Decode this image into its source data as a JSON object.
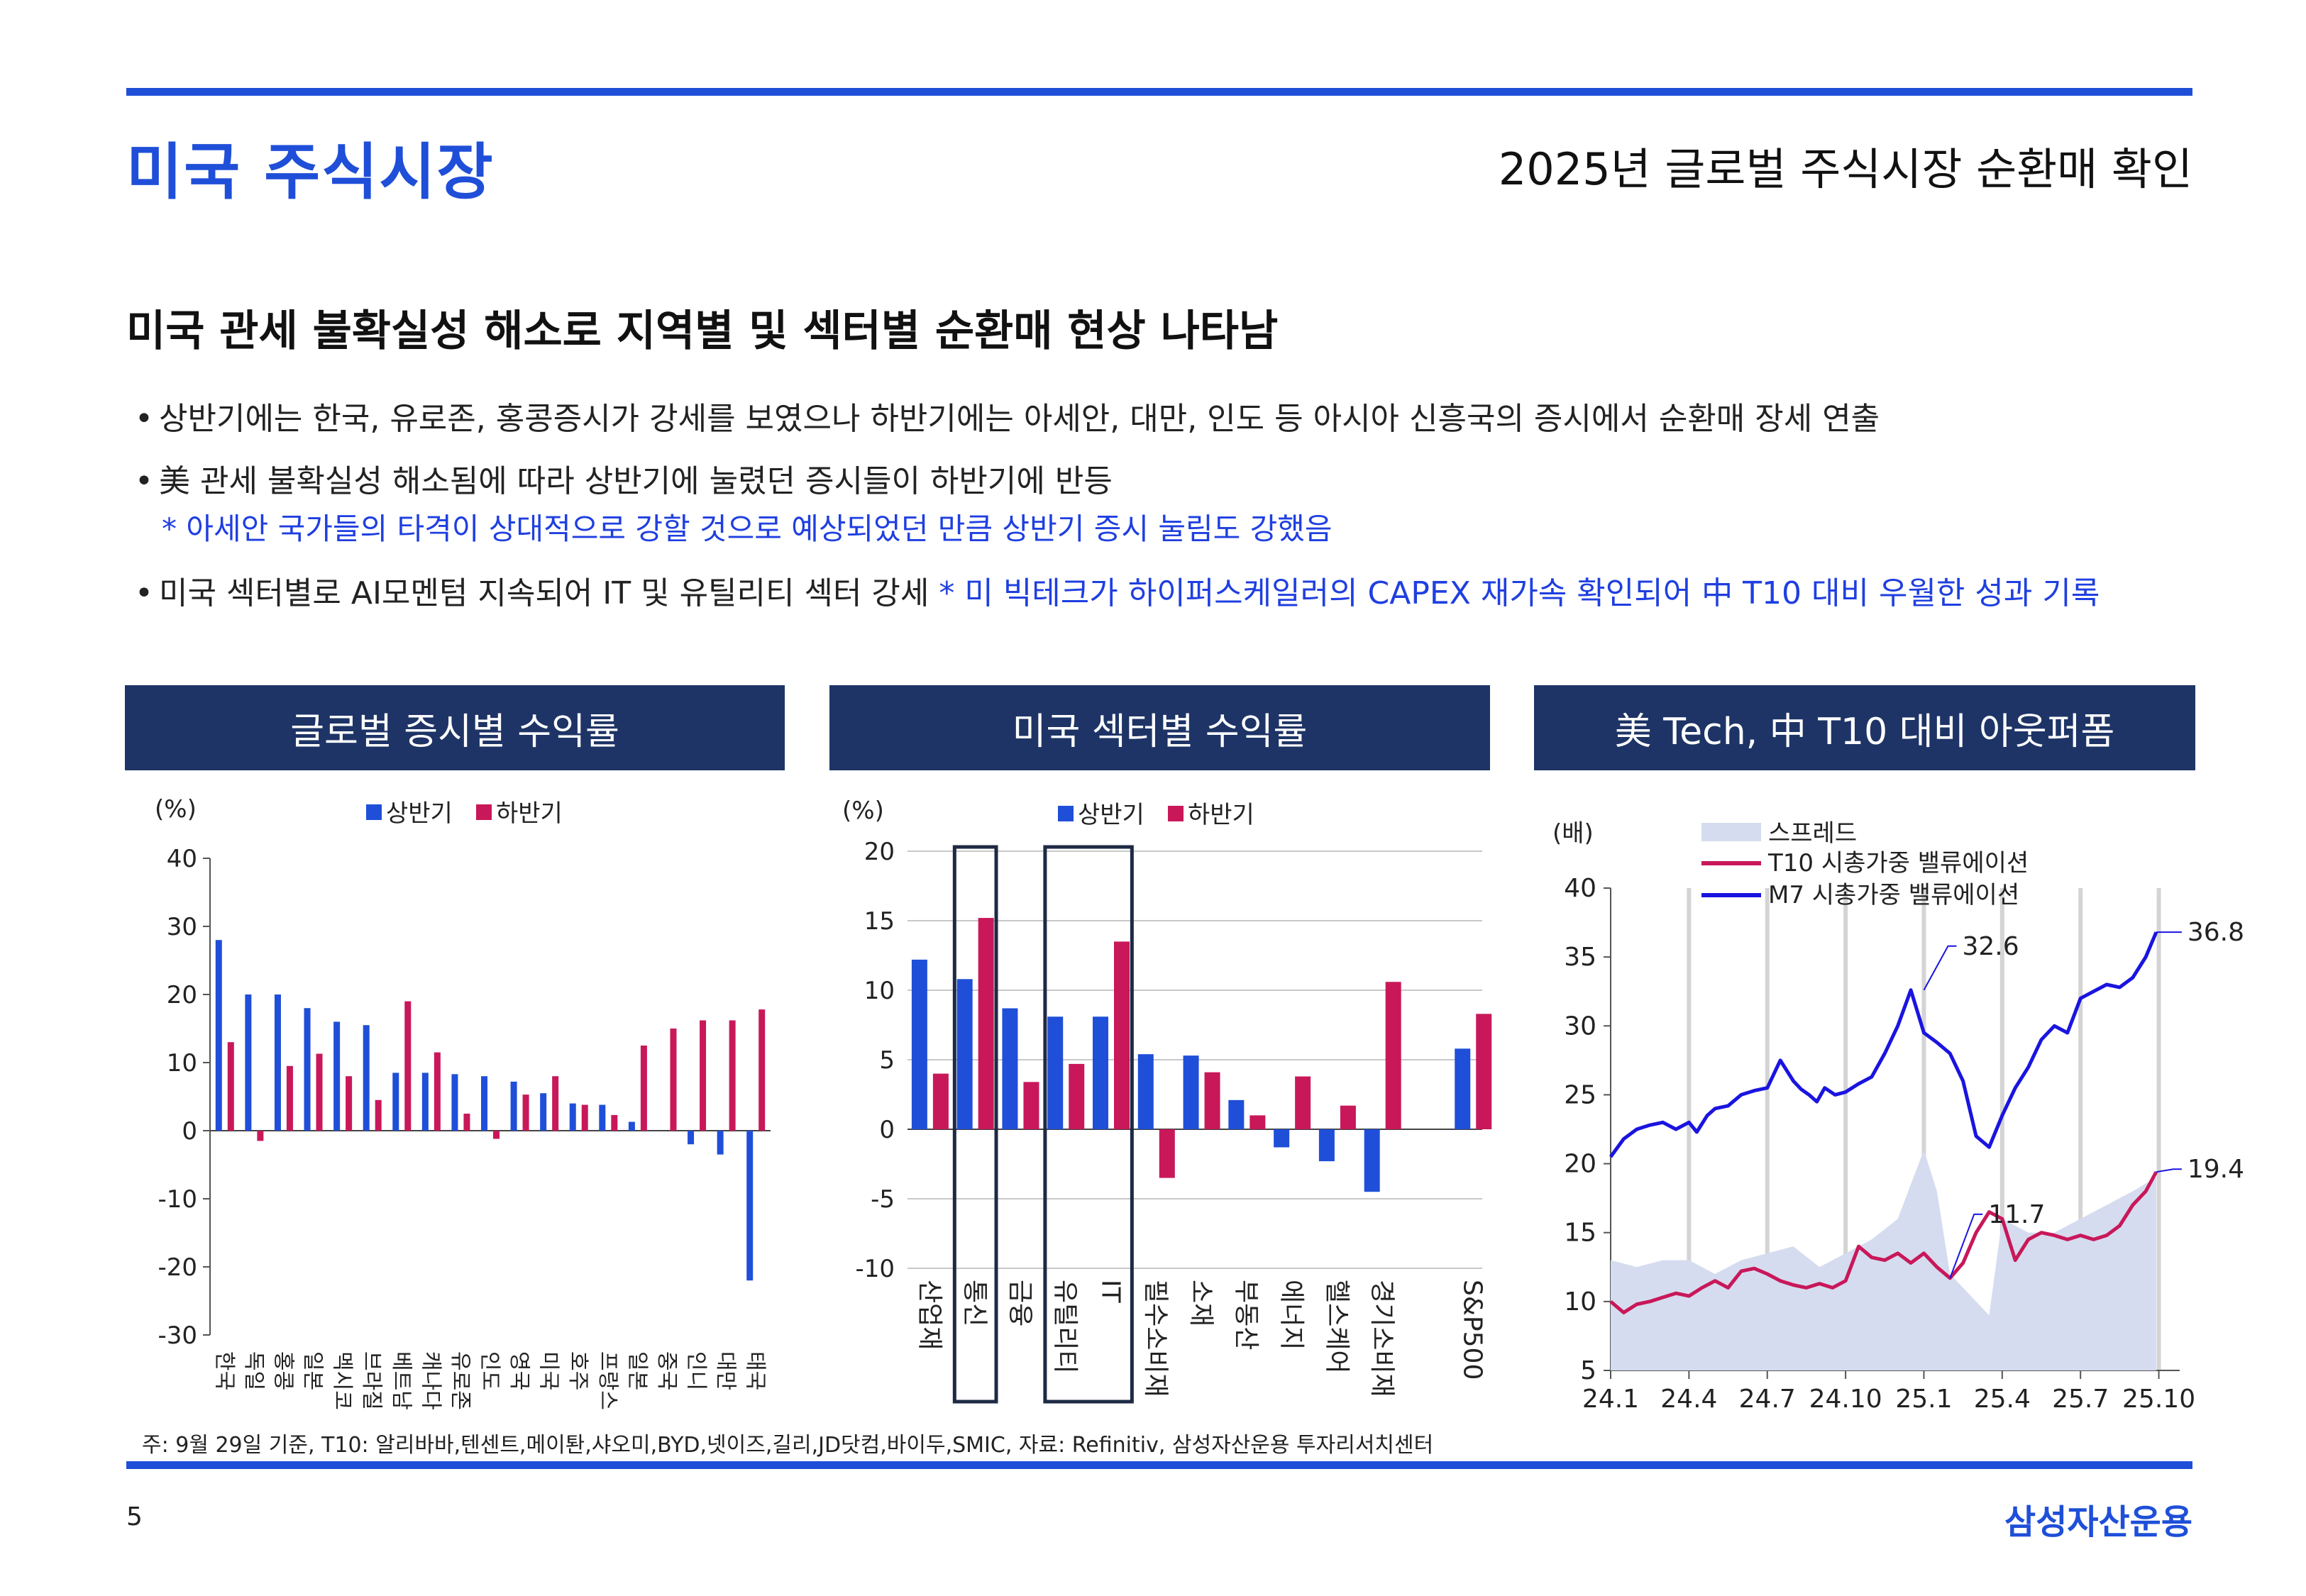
{
  "header": {
    "title": "미국 주식시장",
    "subtitle": "2025년 글로벌 주식시장 순환매 확인"
  },
  "headline": "미국 관세 불확실성 해소로 지역별 및 섹터별 순환매 현상 나타남",
  "bullets": [
    {
      "text": "상반기에는 한국, 유로존, 홍콩증시가 강세를 보였으나 하반기에는 아세안, 대만, 인도 등 아시아 신흥국의 증시에서 순환매 장세 연출"
    },
    {
      "text": "美 관세 불확실성 해소됨에 따라 상반기에 눌렸던 증시들이 하반기에 반등",
      "note": "* 아세안 국가들의 타격이 상대적으로 강할 것으로 예상되었던 만큼 상반기 증시 눌림도 강했음"
    },
    {
      "text": "미국 섹터별로 AI모멘텀 지속되어 IT 및 유틸리티 섹터 강세 ",
      "note_inline": "* 미 빅테크가 하이퍼스케일러의 CAPEX 재가속 확인되어 中 T10 대비 우월한 성과 기록"
    }
  ],
  "panels": {
    "left_title": "글로벌 증시별 수익률",
    "middle_title": "미국 섹터별 수익률",
    "right_title": "美 Tech, 中 T10 대비 아웃퍼폼"
  },
  "colors": {
    "first_half": "#1f4fd8",
    "second_half": "#c8185a",
    "accent": "#1f4fd8",
    "header_bg": "#1e3466"
  },
  "chart_data": [
    {
      "type": "bar",
      "title": "글로벌 증시별 수익률",
      "ylabel": "(%)",
      "ylim": [
        -30,
        40
      ],
      "yticks": [
        40,
        30,
        20,
        10,
        0,
        -10,
        -20,
        -30
      ],
      "legend": [
        "상반기",
        "하반기"
      ],
      "categories": [
        "한국",
        "독일",
        "홍콩",
        "일본",
        "멕시코",
        "브라질",
        "베트남",
        "캐나다",
        "유로존",
        "인도",
        "영국",
        "미국",
        "호주",
        "프랑스",
        "일본",
        "중국",
        "인니",
        "대만",
        "태국"
      ],
      "series": [
        {
          "name": "상반기",
          "values": [
            28,
            20,
            20,
            18,
            16,
            15.5,
            8.5,
            8.5,
            8.3,
            8,
            7.2,
            5.5,
            4,
            3.8,
            1.3,
            0,
            -2,
            -3.5,
            -22
          ]
        },
        {
          "name": "하반기",
          "values": [
            13,
            -1.5,
            9.5,
            11.3,
            8,
            4.5,
            19,
            11.5,
            2.5,
            -1.2,
            5.3,
            8,
            3.8,
            2.3,
            12.5,
            15,
            16.2,
            16.2,
            17.8
          ]
        }
      ]
    },
    {
      "type": "bar",
      "title": "미국 섹터별 수익률",
      "ylabel": "(%)",
      "ylim": [
        -10,
        20
      ],
      "yticks": [
        20,
        15,
        10,
        5,
        0,
        -5,
        -10
      ],
      "legend": [
        "상반기",
        "하반기"
      ],
      "categories": [
        "산업재",
        "통신",
        "금융",
        "유틸리티",
        "IT",
        "필수소비재",
        "소재",
        "부동산",
        "에너지",
        "헬스케어",
        "경기소비재",
        "S&P500"
      ],
      "highlighted": [
        "통신",
        "유틸리티",
        "IT"
      ],
      "series": [
        {
          "name": "상반기",
          "values": [
            12.2,
            10.8,
            8.7,
            8.1,
            8.1,
            5.4,
            5.3,
            2.1,
            -1.3,
            -2.3,
            -4.5,
            5.8
          ]
        },
        {
          "name": "하반기",
          "values": [
            4,
            15.2,
            3.4,
            4.7,
            13.5,
            -3.5,
            4.1,
            1,
            3.8,
            1.7,
            10.6,
            8.3
          ]
        }
      ]
    },
    {
      "type": "line",
      "title": "美 Tech, 中 T10 대비 아웃퍼폼",
      "ylabel": "(배)",
      "ylim": [
        5,
        40
      ],
      "yticks": [
        40,
        35,
        30,
        25,
        20,
        15,
        10,
        5
      ],
      "xticks": [
        "24.1",
        "24.4",
        "24.7",
        "24.10",
        "25.1",
        "25.4",
        "25.7",
        "25.10"
      ],
      "legend": [
        "스프레드",
        "T10 시총가중 밸류에이션",
        "M7 시총가중 밸류에이션"
      ],
      "annotations": [
        "36.8",
        "32.6",
        "11.7",
        "19.4"
      ],
      "series": [
        {
          "name": "M7 시총가중 밸류에이션",
          "x": [
            0,
            0.5,
            1,
            1.5,
            2,
            2.5,
            3,
            3.3,
            3.7,
            4,
            4.5,
            5,
            5.5,
            6,
            6.5,
            7,
            7.3,
            7.6,
            7.9,
            8.2,
            8.6,
            9,
            9.5,
            10,
            10.5,
            11,
            11.5,
            12,
            12.5,
            13,
            13.5,
            14,
            14.5,
            15,
            15.5,
            16,
            16.5,
            17,
            17.5,
            18,
            18.5,
            19,
            19.5,
            20,
            20.5,
            20.9
          ],
          "values": [
            20.5,
            21.8,
            22.5,
            22.8,
            23.0,
            22.5,
            23.0,
            22.3,
            23.5,
            24.0,
            24.2,
            25.0,
            25.3,
            25.5,
            27.5,
            26.0,
            25.4,
            25.0,
            24.5,
            25.5,
            25.0,
            25.2,
            25.8,
            26.3,
            28.0,
            30.0,
            32.6,
            29.5,
            28.8,
            28.0,
            26.0,
            22.0,
            21.2,
            23.5,
            25.5,
            27.0,
            29.0,
            30.0,
            29.5,
            32.0,
            32.5,
            33.0,
            32.8,
            33.5,
            35.0,
            36.8
          ]
        },
        {
          "name": "T10 시총가중 밸류에이션",
          "x": [
            0,
            0.5,
            1,
            1.5,
            2,
            2.5,
            3,
            3.5,
            4,
            4.5,
            5,
            5.5,
            6,
            6.5,
            7,
            7.5,
            8,
            8.5,
            9,
            9.5,
            10,
            10.5,
            11,
            11.5,
            12,
            12.5,
            13,
            13.5,
            14,
            14.5,
            15,
            15.5,
            16,
            16.5,
            17,
            17.5,
            18,
            18.5,
            19,
            19.5,
            20,
            20.5,
            20.9
          ],
          "values": [
            10,
            9.2,
            9.8,
            10.0,
            10.3,
            10.6,
            10.4,
            11.0,
            11.5,
            11.0,
            12.2,
            12.4,
            12.0,
            11.5,
            11.2,
            11.0,
            11.3,
            11.0,
            11.5,
            14.0,
            13.2,
            13.0,
            13.5,
            12.8,
            13.5,
            12.5,
            11.7,
            12.8,
            15.0,
            16.5,
            16.0,
            13.0,
            14.5,
            15.0,
            14.8,
            14.5,
            14.8,
            14.5,
            14.8,
            15.5,
            17.0,
            18.0,
            19.4
          ]
        },
        {
          "name": "스프레드",
          "x": [
            0,
            1,
            2,
            3,
            4,
            5,
            6,
            7,
            8,
            9,
            10,
            11,
            12,
            12.5,
            13,
            13.5,
            14,
            14.5,
            15,
            16,
            17,
            18,
            19,
            20,
            20.9
          ],
          "values": [
            13,
            12.5,
            13,
            13,
            12,
            13,
            13.5,
            14,
            12.5,
            13.5,
            14.5,
            16,
            21,
            18,
            12,
            11,
            10,
            9,
            16,
            15,
            15,
            16,
            17,
            18,
            19
          ]
        }
      ]
    }
  ],
  "footer": {
    "footnote": "주: 9월 29일 기준, T10: 알리바바,텐센트,메이퇀,샤오미,BYD,넷이즈,길리,JD닷컴,바이두,SMIC, 자료: Refinitiv, 삼성자산운용 투자리서치센터",
    "page_number": "5",
    "brand": "삼성자산운용"
  }
}
